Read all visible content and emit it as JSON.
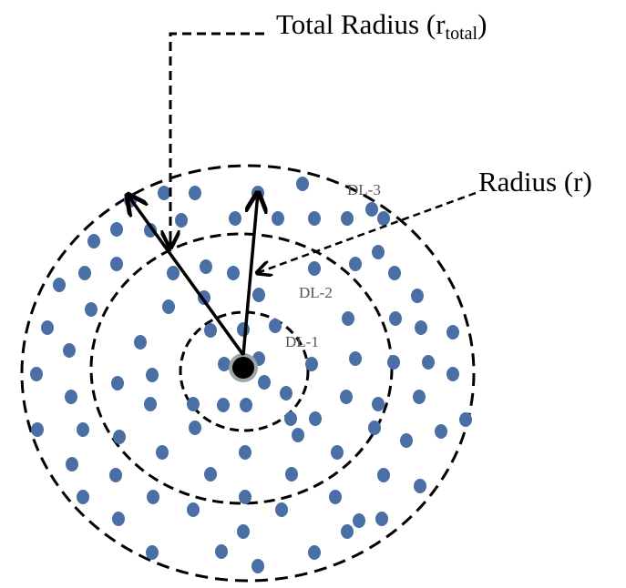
{
  "labels": {
    "total_radius_main": "Total Radius (r",
    "total_radius_sub": "total",
    "total_radius_close": ")",
    "radius": "Radius (r)",
    "ring_1": "DL-1",
    "ring_2": "DL-2",
    "ring_3": "DL-3"
  },
  "colors": {
    "node_fill": "#4a6fa5",
    "center_fill": "#000000",
    "center_ring": "#9aa6a8",
    "line": "#000000"
  }
}
